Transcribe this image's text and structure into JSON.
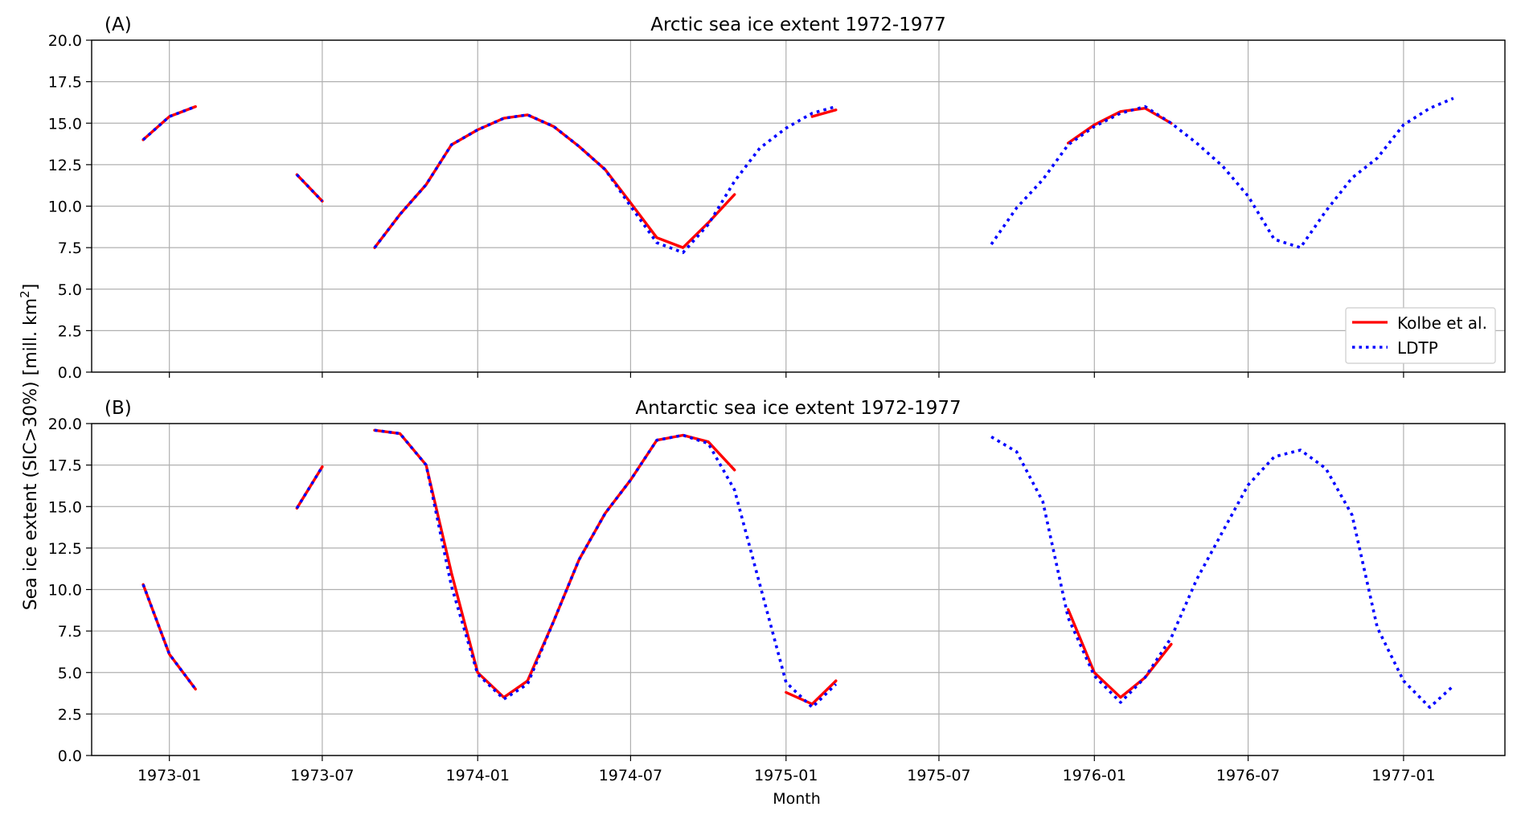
{
  "figure": {
    "ylabel": "Sea ice extent (SIC>30%) [mill. km",
    "ylabel_sup": "2",
    "ylabel_end": "]",
    "xlabel": "Month"
  },
  "chart_data": [
    {
      "type": "line",
      "panel_label": "(A)",
      "title": "Arctic sea ice extent 1972-1977",
      "ylim": [
        0,
        20
      ],
      "yticks": [
        "0.0",
        "2.5",
        "5.0",
        "7.5",
        "10.0",
        "12.5",
        "15.0",
        "17.5",
        "20.0"
      ],
      "xlim": [
        "1972-10-01",
        "1977-05-01"
      ],
      "xticks": [
        "1973-01",
        "1973-07",
        "1974-01",
        "1974-07",
        "1975-01",
        "1975-07",
        "1976-01",
        "1976-07",
        "1977-01"
      ],
      "grid": true,
      "legend": {
        "placement": "lower-right",
        "entries": [
          "Kolbe et al.",
          "LDTP"
        ]
      },
      "series": [
        {
          "name": "Kolbe et al.",
          "color": "#ff0000",
          "style": "solid",
          "segments": [
            [
              [
                "1972-12",
                14.0
              ],
              [
                "1973-01",
                15.4
              ],
              [
                "1973-02",
                16.0
              ]
            ],
            [
              [
                "1973-06",
                11.9
              ],
              [
                "1973-07",
                10.3
              ]
            ],
            [
              [
                "1973-09",
                7.5
              ],
              [
                "1973-10",
                9.5
              ],
              [
                "1973-11",
                11.3
              ],
              [
                "1973-12",
                13.7
              ],
              [
                "1974-01",
                14.6
              ],
              [
                "1974-02",
                15.3
              ],
              [
                "1974-03",
                15.5
              ],
              [
                "1974-04",
                14.8
              ],
              [
                "1974-05",
                13.6
              ],
              [
                "1974-06",
                12.2
              ],
              [
                "1974-07",
                10.2
              ],
              [
                "1974-08",
                8.1
              ],
              [
                "1974-09",
                7.5
              ],
              [
                "1974-10",
                9.0
              ],
              [
                "1974-11",
                10.7
              ]
            ],
            [
              [
                "1975-02",
                15.4
              ],
              [
                "1975-03",
                15.8
              ]
            ],
            [
              [
                "1975-12",
                13.8
              ],
              [
                "1976-01",
                14.9
              ],
              [
                "1976-02",
                15.7
              ],
              [
                "1976-03",
                15.9
              ],
              [
                "1976-04",
                15.0
              ]
            ]
          ]
        },
        {
          "name": "LDTP",
          "color": "#0000ff",
          "style": "dotted",
          "segments": [
            [
              [
                "1972-12",
                14.0
              ],
              [
                "1973-01",
                15.4
              ],
              [
                "1973-02",
                16.0
              ]
            ],
            [
              [
                "1973-06",
                11.9
              ],
              [
                "1973-07",
                10.3
              ]
            ],
            [
              [
                "1973-09",
                7.5
              ],
              [
                "1973-10",
                9.5
              ],
              [
                "1973-11",
                11.3
              ],
              [
                "1973-12",
                13.7
              ],
              [
                "1974-01",
                14.6
              ],
              [
                "1974-02",
                15.3
              ],
              [
                "1974-03",
                15.5
              ],
              [
                "1974-04",
                14.8
              ],
              [
                "1974-05",
                13.6
              ],
              [
                "1974-06",
                12.2
              ],
              [
                "1974-07",
                10.0
              ],
              [
                "1974-08",
                7.8
              ],
              [
                "1974-09",
                7.2
              ],
              [
                "1974-10",
                8.9
              ],
              [
                "1974-11",
                11.5
              ],
              [
                "1974-12",
                13.5
              ],
              [
                "1975-01",
                14.7
              ],
              [
                "1975-02",
                15.6
              ],
              [
                "1975-03",
                16.0
              ]
            ],
            [
              [
                "1975-09",
                7.7
              ],
              [
                "1975-10",
                9.9
              ],
              [
                "1975-11",
                11.6
              ],
              [
                "1975-12",
                13.7
              ],
              [
                "1976-01",
                14.8
              ],
              [
                "1976-02",
                15.6
              ],
              [
                "1976-03",
                16.0
              ],
              [
                "1976-04",
                15.0
              ],
              [
                "1976-05",
                13.8
              ],
              [
                "1976-06",
                12.4
              ],
              [
                "1976-07",
                10.6
              ],
              [
                "1976-08",
                8.0
              ],
              [
                "1976-09",
                7.5
              ],
              [
                "1976-10",
                9.7
              ],
              [
                "1976-11",
                11.7
              ],
              [
                "1976-12",
                12.9
              ],
              [
                "1977-01",
                14.9
              ],
              [
                "1977-02",
                15.9
              ],
              [
                "1977-03",
                16.5
              ]
            ]
          ]
        }
      ]
    },
    {
      "type": "line",
      "panel_label": "(B)",
      "title": "Antarctic sea ice extent 1972-1977",
      "ylim": [
        0,
        20
      ],
      "yticks": [
        "0.0",
        "2.5",
        "5.0",
        "7.5",
        "10.0",
        "12.5",
        "15.0",
        "17.5",
        "20.0"
      ],
      "xlim": [
        "1972-10-01",
        "1977-05-01"
      ],
      "xticks": [
        "1973-01",
        "1973-07",
        "1974-01",
        "1974-07",
        "1975-01",
        "1975-07",
        "1976-01",
        "1976-07",
        "1977-01"
      ],
      "grid": true,
      "series": [
        {
          "name": "Kolbe et al.",
          "color": "#ff0000",
          "style": "solid",
          "segments": [
            [
              [
                "1972-12",
                10.3
              ],
              [
                "1973-01",
                6.1
              ],
              [
                "1973-02",
                4.0
              ]
            ],
            [
              [
                "1973-06",
                14.9
              ],
              [
                "1973-07",
                17.4
              ]
            ],
            [
              [
                "1973-09",
                19.6
              ],
              [
                "1973-10",
                19.4
              ],
              [
                "1973-11",
                17.5
              ],
              [
                "1973-12",
                11.0
              ],
              [
                "1974-01",
                5.0
              ],
              [
                "1974-02",
                3.5
              ],
              [
                "1974-03",
                4.5
              ],
              [
                "1974-04",
                8.1
              ],
              [
                "1974-05",
                11.8
              ],
              [
                "1974-06",
                14.6
              ],
              [
                "1974-07",
                16.6
              ],
              [
                "1974-08",
                19.0
              ],
              [
                "1974-09",
                19.3
              ],
              [
                "1974-10",
                18.9
              ],
              [
                "1974-11",
                17.2
              ]
            ],
            [
              [
                "1975-01",
                3.8
              ],
              [
                "1975-02",
                3.1
              ],
              [
                "1975-03",
                4.5
              ]
            ],
            [
              [
                "1975-12",
                8.8
              ],
              [
                "1976-01",
                5.0
              ],
              [
                "1976-02",
                3.5
              ],
              [
                "1976-03",
                4.7
              ],
              [
                "1976-04",
                6.7
              ]
            ]
          ]
        },
        {
          "name": "LDTP",
          "color": "#0000ff",
          "style": "dotted",
          "segments": [
            [
              [
                "1972-12",
                10.3
              ],
              [
                "1973-01",
                6.1
              ],
              [
                "1973-02",
                4.0
              ]
            ],
            [
              [
                "1973-06",
                14.9
              ],
              [
                "1973-07",
                17.4
              ]
            ],
            [
              [
                "1973-09",
                19.6
              ],
              [
                "1973-10",
                19.4
              ],
              [
                "1973-11",
                17.5
              ],
              [
                "1973-12",
                10.2
              ],
              [
                "1974-01",
                4.9
              ],
              [
                "1974-02",
                3.4
              ],
              [
                "1974-03",
                4.3
              ],
              [
                "1974-04",
                8.1
              ],
              [
                "1974-05",
                11.8
              ],
              [
                "1974-06",
                14.6
              ],
              [
                "1974-07",
                16.6
              ],
              [
                "1974-08",
                19.0
              ],
              [
                "1974-09",
                19.3
              ],
              [
                "1974-10",
                18.8
              ],
              [
                "1974-11",
                16.0
              ],
              [
                "1974-12",
                10.3
              ],
              [
                "1975-01",
                4.4
              ],
              [
                "1975-02",
                2.9
              ],
              [
                "1975-03",
                4.3
              ]
            ],
            [
              [
                "1975-09",
                19.2
              ],
              [
                "1975-10",
                18.3
              ],
              [
                "1975-11",
                15.3
              ],
              [
                "1975-12",
                8.3
              ],
              [
                "1976-01",
                4.8
              ],
              [
                "1976-02",
                3.2
              ],
              [
                "1976-03",
                4.7
              ],
              [
                "1976-04",
                7.1
              ],
              [
                "1976-05",
                10.6
              ],
              [
                "1976-06",
                13.5
              ],
              [
                "1976-07",
                16.3
              ],
              [
                "1976-08",
                18.0
              ],
              [
                "1976-09",
                18.4
              ],
              [
                "1976-10",
                17.3
              ],
              [
                "1976-11",
                14.5
              ],
              [
                "1976-12",
                7.7
              ],
              [
                "1977-01",
                4.5
              ],
              [
                "1977-02",
                2.9
              ],
              [
                "1977-03",
                4.2
              ]
            ]
          ]
        }
      ]
    }
  ]
}
